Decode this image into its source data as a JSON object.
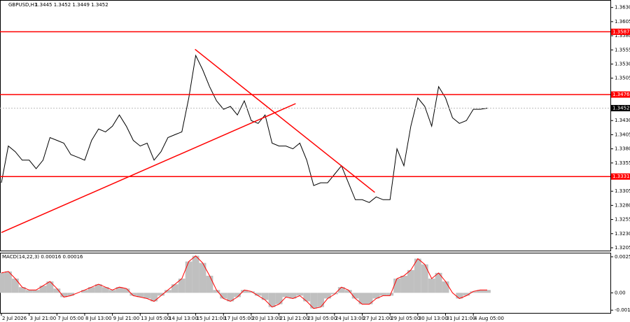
{
  "chart_data": [
    {
      "type": "line",
      "title": "GBPUSD,H1",
      "quote": "1.3445 1.3452 1.3449 1.3452",
      "color": "#000000",
      "categories": [
        "2 Jul 2026",
        null,
        null,
        null,
        "3 Jul 21:00",
        null,
        null,
        null,
        "7 Jul 05:00",
        null,
        null,
        null,
        "8 Jul 13:00",
        null,
        null,
        null,
        "9 Jul 21:00",
        null,
        null,
        null,
        "13 Jul 05:00",
        null,
        null,
        null,
        "14 Jul 13:00",
        null,
        null,
        null,
        "15 Jul 21:00",
        null,
        null,
        null,
        "17 Jul 05:00",
        null,
        null,
        null,
        "20 Jul 13:00",
        null,
        null,
        null,
        "21 Jul 21:00",
        null,
        null,
        null,
        "23 Jul 05:00",
        null,
        null,
        null,
        "24 Jul 13:00",
        null,
        null,
        null,
        "27 Jul 21:00",
        null,
        null,
        null,
        "29 Jul 05:00",
        null,
        null,
        null,
        "30 Jul 13:00",
        null,
        null,
        null,
        "31 Jul 21:00",
        null,
        null,
        null,
        "4 Aug 05:00",
        null,
        null
      ],
      "values": [
        1.332,
        1.3385,
        1.3375,
        1.336,
        1.336,
        1.3345,
        1.336,
        1.34,
        1.3395,
        1.339,
        1.337,
        1.3365,
        1.336,
        1.3395,
        1.3415,
        1.341,
        1.342,
        1.344,
        1.342,
        1.3395,
        1.3385,
        1.339,
        1.336,
        1.3375,
        1.34,
        1.3405,
        1.341,
        1.347,
        1.3545,
        1.352,
        1.349,
        1.3465,
        1.345,
        1.3455,
        1.344,
        1.3465,
        1.343,
        1.3425,
        1.344,
        1.339,
        1.3385,
        1.3385,
        1.338,
        1.339,
        1.336,
        1.3315,
        1.332,
        1.332,
        1.3335,
        1.335,
        1.332,
        1.329,
        1.329,
        1.3285,
        1.3295,
        1.329,
        1.329,
        1.338,
        1.335,
        1.342,
        1.347,
        1.3455,
        1.342,
        1.349,
        1.347,
        1.3435,
        1.3425,
        1.343,
        1.345,
        1.345,
        1.3452
      ],
      "ylim": [
        1.32,
        1.3642
      ],
      "yticks": [
        1.3205,
        {
          "value": 1.323,
          "label": "1.3230"
        },
        1.3255,
        {
          "value": 1.328,
          "label": "1.3280"
        },
        1.3305,
        1.3355,
        {
          "value": 1.338,
          "label": "1.3380"
        },
        1.3405,
        {
          "value": 1.343,
          "label": "1.3430"
        },
        1.3505,
        {
          "value": 1.353,
          "label": "1.3530"
        },
        1.3555,
        {
          "value": 1.358,
          "label": "1.3580"
        },
        1.3605,
        {
          "value": 1.363,
          "label": "1.3630"
        }
      ],
      "levels": [
        1.3587,
        1.3476,
        1.3331
      ],
      "level_color": "#ff0000",
      "current_price": 1.3452,
      "trendlines": [
        {
          "x": [
            0,
            42.4
          ],
          "y": [
            1.3232,
            1.346
          ]
        },
        {
          "x": [
            27.9,
            53.8
          ],
          "y": [
            1.3556,
            1.3303
          ]
        }
      ]
    },
    {
      "type": "macd",
      "title": "MACD(14,22,3) 0.00016 0.00016",
      "color": "#c0c0c0",
      "line_color": "#ff0000",
      "values": [
        0.0014,
        0.0015,
        0.001,
        0.0004,
        0.0002,
        0.0002,
        0.0005,
        0.0008,
        0.0003,
        -0.0003,
        -0.0002,
        0.0,
        0.0002,
        0.0004,
        0.0006,
        0.0004,
        0.0002,
        0.0004,
        0.0003,
        -0.0002,
        -0.0003,
        -0.0004,
        -0.0006,
        -0.0002,
        0.0002,
        0.0006,
        0.001,
        0.0022,
        0.0026,
        0.0021,
        0.0012,
        0.0002,
        -0.0004,
        -0.0006,
        -0.0003,
        0.0002,
        0.0001,
        -0.0002,
        -0.0005,
        -0.001,
        -0.0008,
        -0.0003,
        -0.0004,
        -0.0002,
        -0.0006,
        -0.0011,
        -0.001,
        -0.0004,
        -0.0001,
        0.0004,
        0.0002,
        -0.0004,
        -0.0008,
        -0.0008,
        -0.0004,
        -0.0002,
        -0.0002,
        0.001,
        0.0012,
        0.0016,
        0.0024,
        0.002,
        0.001,
        0.0014,
        0.0008,
        0.0,
        -0.0004,
        -0.0002,
        0.0001,
        0.0002,
        0.0002
      ],
      "ylim": [
        -0.00141,
        0.00277
      ],
      "yticks": [
        -0.00122,
        {
          "value": 0,
          "label": "0.00"
        },
        0.00253
      ]
    }
  ]
}
